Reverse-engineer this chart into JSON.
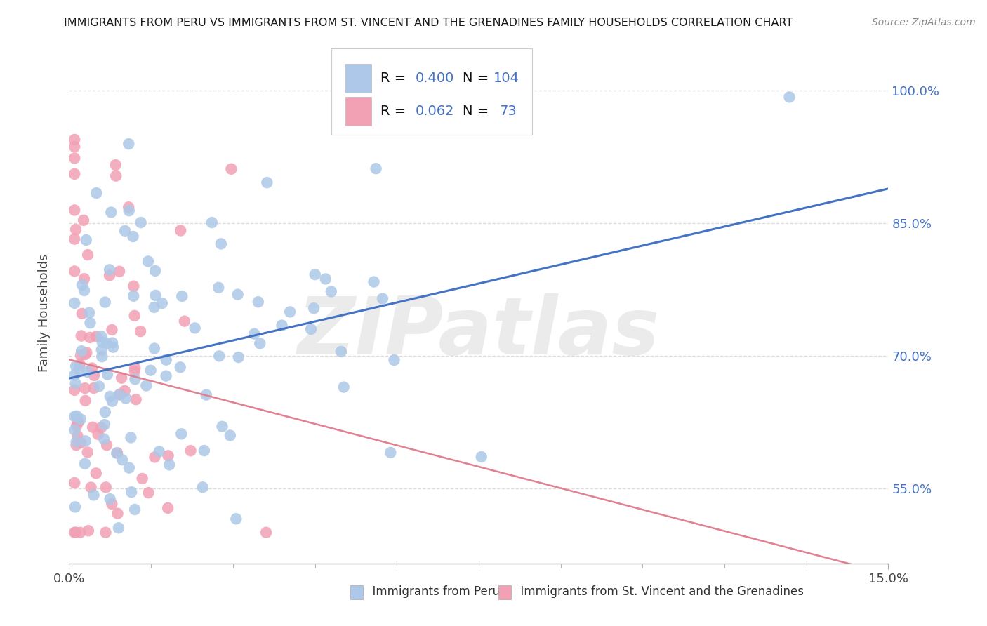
{
  "title": "IMMIGRANTS FROM PERU VS IMMIGRANTS FROM ST. VINCENT AND THE GRENADINES FAMILY HOUSEHOLDS CORRELATION CHART",
  "source": "Source: ZipAtlas.com",
  "ylabel": "Family Households",
  "y_ticks": [
    0.55,
    0.7,
    0.85,
    1.0
  ],
  "y_tick_labels": [
    "55.0%",
    "70.0%",
    "85.0%",
    "100.0%"
  ],
  "x_range": [
    0.0,
    0.15
  ],
  "y_range": [
    0.465,
    1.06
  ],
  "legend_r1": "0.400",
  "legend_n1": "104",
  "legend_r2": "0.062",
  "legend_n2": "73",
  "label1": "Immigrants from Peru",
  "label2": "Immigrants from St. Vincent and the Grenadines",
  "color1": "#adc8e8",
  "color2": "#f2a0b4",
  "trendline1_color": "#4472c4",
  "trendline2_color": "#d4a0a8",
  "watermark": "ZIPatlas",
  "blue_text_color": "#4472c4",
  "title_fontsize": 11.5,
  "tick_fontsize": 13,
  "legend_fontsize": 14
}
